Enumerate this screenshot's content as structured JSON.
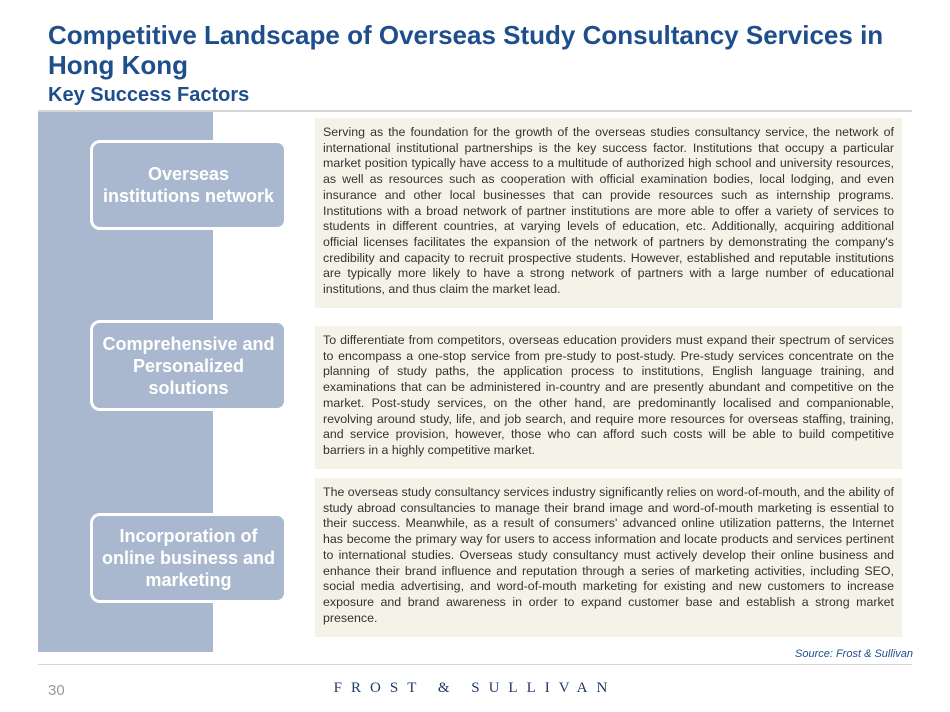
{
  "header": {
    "title": "Competitive Landscape of Overseas Study Consultancy Services in Hong Kong",
    "subtitle": "Key Success Factors"
  },
  "factors": [
    {
      "label": "Overseas institutions network",
      "description": "Serving as the foundation for the growth of the overseas studies consultancy service, the network of international institutional partnerships is the key success factor. Institutions that occupy a particular market position typically have access to a multitude of authorized high school and university resources, as well as resources such as cooperation with official examination bodies, local lodging, and even insurance and other local businesses that can provide resources such as internship programs. Institutions with a broad network of partner institutions are more able to offer a variety of services to students in different countries, at varying levels of education, etc. Additionally, acquiring additional official licenses facilitates the expansion of the network of partners by demonstrating the company's credibility and capacity to recruit prospective students. However, established and reputable institutions are typically more likely to have a strong network of partners with a large number of educational institutions, and thus claim the market lead."
    },
    {
      "label": "Comprehensive and Personalized solutions",
      "description": "To differentiate from competitors, overseas education providers must expand their spectrum of services to encompass a one-stop service from pre-study to post-study. Pre-study services concentrate on the planning of study paths, the application process to institutions, English language training, and examinations that can be administered in-country and are presently abundant and competitive on the market. Post-study services, on the other hand, are predominantly localised and companionable, revolving around study, life, and job search, and require more resources for overseas staffing, training, and service provision, however, those who can afford such costs will be able to build competitive barriers in a highly competitive market."
    },
    {
      "label": "Incorporation of online business and marketing",
      "description": "The overseas study consultancy services industry significantly relies on word-of-mouth, and the ability of study abroad consultancies to manage their brand image and word-of-mouth marketing is essential to their success. Meanwhile, as a result of consumers' advanced online utilization patterns, the Internet has become the primary way for users to access information and locate products and services pertinent to international studies. Overseas study consultancy must actively develop their online business and enhance their brand influence and reputation through a series of marketing activities, including SEO, social media advertising, and word-of-mouth marketing for existing and new customers to increase exposure and brand awareness in order to expand customer base and establish a strong market presence."
    }
  ],
  "source": "Source: Frost & Sullivan",
  "page_number": "30",
  "logo": "FROST & SULLIVAN"
}
